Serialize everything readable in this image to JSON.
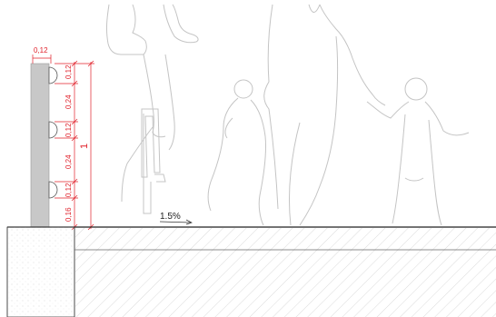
{
  "colors": {
    "dimension": "#e0202a",
    "silhouette": "#c4c4c4",
    "wall_fill": "#c8c8c8",
    "ground_line": "#222222",
    "hatch": "#cfcfcf"
  },
  "dimensions": {
    "top_width": "0,12",
    "segments": [
      "0,12",
      "0,24",
      "0,12",
      "0,24",
      "0,12",
      "0,16"
    ],
    "total_height": "1"
  },
  "slope": {
    "label": "1.5%"
  },
  "silhouettes": [
    "cyclist",
    "adult",
    "child-held",
    "child"
  ]
}
